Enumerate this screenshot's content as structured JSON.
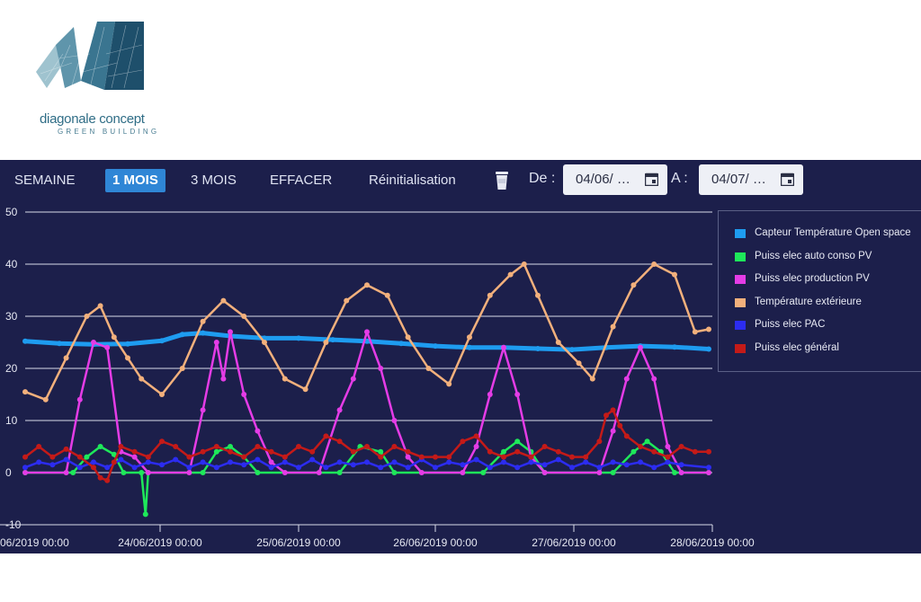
{
  "logo": {
    "name": "diagonale concept",
    "tagline": "GREEN BUILDING"
  },
  "toolbar": {
    "buttons": [
      "SEMAINE",
      "1 MOIS",
      "3 MOIS",
      "EFFACER",
      "Réinitialisation"
    ],
    "active_button": "1 MOIS",
    "from_label": "De :",
    "from_value": "04/06/ …",
    "to_label": "A :",
    "to_value": "04/07/ …",
    "icons": [
      "trash-icon",
      "calendar-icon"
    ]
  },
  "colors": {
    "background": "#1c1f4b",
    "accent": "#2f86d6"
  },
  "chart_data": {
    "type": "line",
    "ylim": [
      -10,
      50
    ],
    "yticks": [
      "50",
      "40",
      "30",
      "20",
      "10",
      "0",
      "-10"
    ],
    "x_range": [
      "2019-06-23 00:00",
      "2019-06-28 00:00"
    ],
    "xticks": [
      "06/2019 00:00",
      "24/06/2019 00:00",
      "25/06/2019 00:00",
      "26/06/2019 00:00",
      "27/06/2019 00:00",
      "28/06/2019 00:00"
    ],
    "grid": true,
    "legend_position": "right",
    "series": [
      {
        "name": "Capteur Température Open space",
        "color": "#1e9cf0",
        "points": [
          [
            0,
            25.2
          ],
          [
            0.25,
            24.8
          ],
          [
            0.5,
            24.6
          ],
          [
            0.75,
            24.7
          ],
          [
            1,
            25.3
          ],
          [
            1.15,
            26.5
          ],
          [
            1.3,
            26.8
          ],
          [
            1.5,
            26.2
          ],
          [
            1.75,
            25.8
          ],
          [
            2,
            25.8
          ],
          [
            2.25,
            25.5
          ],
          [
            2.5,
            25.2
          ],
          [
            2.75,
            24.8
          ],
          [
            3,
            24.3
          ],
          [
            3.25,
            24.0
          ],
          [
            3.5,
            24.0
          ],
          [
            3.75,
            23.8
          ],
          [
            4,
            23.6
          ],
          [
            4.25,
            24.0
          ],
          [
            4.5,
            24.3
          ],
          [
            4.75,
            24.1
          ],
          [
            5,
            23.7
          ]
        ]
      },
      {
        "name": "Puiss elec auto conso PV",
        "color": "#1ee85a",
        "points": [
          [
            0,
            0
          ],
          [
            0.35,
            0
          ],
          [
            0.45,
            3
          ],
          [
            0.55,
            5
          ],
          [
            0.65,
            3.5
          ],
          [
            0.72,
            0
          ],
          [
            0.85,
            0
          ],
          [
            0.88,
            -8
          ],
          [
            0.9,
            0
          ],
          [
            1.3,
            0
          ],
          [
            1.4,
            4
          ],
          [
            1.5,
            5
          ],
          [
            1.6,
            3
          ],
          [
            1.7,
            0
          ],
          [
            2.3,
            0
          ],
          [
            2.45,
            5
          ],
          [
            2.6,
            4
          ],
          [
            2.7,
            0
          ],
          [
            3.35,
            0
          ],
          [
            3.5,
            4
          ],
          [
            3.6,
            6
          ],
          [
            3.7,
            4
          ],
          [
            3.8,
            0
          ],
          [
            4.3,
            0
          ],
          [
            4.45,
            4
          ],
          [
            4.55,
            6
          ],
          [
            4.65,
            4
          ],
          [
            4.75,
            0
          ],
          [
            5,
            0
          ]
        ]
      },
      {
        "name": "Puiss elec production PV",
        "color": "#e43ce6",
        "points": [
          [
            0,
            0
          ],
          [
            0.3,
            0
          ],
          [
            0.4,
            14
          ],
          [
            0.5,
            25
          ],
          [
            0.6,
            24
          ],
          [
            0.7,
            4
          ],
          [
            0.8,
            3
          ],
          [
            0.9,
            0
          ],
          [
            1.2,
            0
          ],
          [
            1.3,
            12
          ],
          [
            1.4,
            25
          ],
          [
            1.45,
            18
          ],
          [
            1.5,
            27
          ],
          [
            1.6,
            15
          ],
          [
            1.7,
            8
          ],
          [
            1.8,
            2
          ],
          [
            1.9,
            0
          ],
          [
            2.15,
            0
          ],
          [
            2.3,
            12
          ],
          [
            2.4,
            18
          ],
          [
            2.5,
            27
          ],
          [
            2.6,
            20
          ],
          [
            2.7,
            10
          ],
          [
            2.8,
            3
          ],
          [
            2.9,
            0
          ],
          [
            3.2,
            0
          ],
          [
            3.3,
            5
          ],
          [
            3.4,
            15
          ],
          [
            3.5,
            24
          ],
          [
            3.6,
            15
          ],
          [
            3.7,
            3
          ],
          [
            3.8,
            0
          ],
          [
            4.2,
            0
          ],
          [
            4.3,
            8
          ],
          [
            4.4,
            18
          ],
          [
            4.5,
            24
          ],
          [
            4.6,
            18
          ],
          [
            4.7,
            5
          ],
          [
            4.8,
            0
          ],
          [
            5,
            0
          ]
        ]
      },
      {
        "name": "Température extérieure",
        "color": "#f2b07c",
        "points": [
          [
            0,
            15.5
          ],
          [
            0.15,
            14
          ],
          [
            0.3,
            22
          ],
          [
            0.45,
            30
          ],
          [
            0.55,
            32
          ],
          [
            0.65,
            26
          ],
          [
            0.75,
            22
          ],
          [
            0.85,
            18
          ],
          [
            1,
            15
          ],
          [
            1.15,
            20
          ],
          [
            1.3,
            29
          ],
          [
            1.45,
            33
          ],
          [
            1.6,
            30
          ],
          [
            1.75,
            25
          ],
          [
            1.9,
            18
          ],
          [
            2.05,
            16
          ],
          [
            2.2,
            25
          ],
          [
            2.35,
            33
          ],
          [
            2.5,
            36
          ],
          [
            2.65,
            34
          ],
          [
            2.8,
            26
          ],
          [
            2.95,
            20
          ],
          [
            3.1,
            17
          ],
          [
            3.25,
            26
          ],
          [
            3.4,
            34
          ],
          [
            3.55,
            38
          ],
          [
            3.65,
            40
          ],
          [
            3.75,
            34
          ],
          [
            3.9,
            25
          ],
          [
            4.05,
            21
          ],
          [
            4.15,
            18
          ],
          [
            4.3,
            28
          ],
          [
            4.45,
            36
          ],
          [
            4.6,
            40
          ],
          [
            4.75,
            38
          ],
          [
            4.9,
            27
          ],
          [
            5,
            27.5
          ]
        ]
      },
      {
        "name": "Puiss elec PAC",
        "color": "#2c2cf0",
        "points": [
          [
            0,
            1
          ],
          [
            0.1,
            2
          ],
          [
            0.2,
            1.5
          ],
          [
            0.3,
            2.5
          ],
          [
            0.4,
            1
          ],
          [
            0.5,
            2
          ],
          [
            0.6,
            1
          ],
          [
            0.7,
            2.5
          ],
          [
            0.8,
            1
          ],
          [
            0.9,
            2
          ],
          [
            1,
            1.5
          ],
          [
            1.1,
            2.5
          ],
          [
            1.2,
            1
          ],
          [
            1.3,
            2
          ],
          [
            1.4,
            1
          ],
          [
            1.5,
            2
          ],
          [
            1.6,
            1.5
          ],
          [
            1.7,
            2.5
          ],
          [
            1.8,
            1
          ],
          [
            1.9,
            2
          ],
          [
            2,
            1
          ],
          [
            2.1,
            2.5
          ],
          [
            2.2,
            1
          ],
          [
            2.3,
            2
          ],
          [
            2.4,
            1.5
          ],
          [
            2.5,
            2
          ],
          [
            2.6,
            1
          ],
          [
            2.7,
            2
          ],
          [
            2.8,
            1
          ],
          [
            2.9,
            2.5
          ],
          [
            3,
            1
          ],
          [
            3.1,
            2
          ],
          [
            3.2,
            1.5
          ],
          [
            3.3,
            2.5
          ],
          [
            3.4,
            1
          ],
          [
            3.5,
            2
          ],
          [
            3.6,
            1
          ],
          [
            3.7,
            2
          ],
          [
            3.8,
            1.5
          ],
          [
            3.9,
            2.5
          ],
          [
            4,
            1
          ],
          [
            4.1,
            2
          ],
          [
            4.2,
            1
          ],
          [
            4.3,
            2
          ],
          [
            4.4,
            1.5
          ],
          [
            4.5,
            2
          ],
          [
            4.6,
            1
          ],
          [
            4.7,
            2
          ],
          [
            4.8,
            1.5
          ],
          [
            5,
            1
          ]
        ]
      },
      {
        "name": "Puiss elec général",
        "color": "#c41a18",
        "points": [
          [
            0,
            3
          ],
          [
            0.1,
            5
          ],
          [
            0.2,
            3
          ],
          [
            0.3,
            4.5
          ],
          [
            0.4,
            3
          ],
          [
            0.5,
            1
          ],
          [
            0.55,
            -1
          ],
          [
            0.6,
            -1.5
          ],
          [
            0.65,
            2
          ],
          [
            0.7,
            5
          ],
          [
            0.8,
            4
          ],
          [
            0.9,
            3
          ],
          [
            1,
            6
          ],
          [
            1.1,
            5
          ],
          [
            1.2,
            3
          ],
          [
            1.3,
            4
          ],
          [
            1.4,
            5
          ],
          [
            1.5,
            4
          ],
          [
            1.6,
            3
          ],
          [
            1.7,
            5
          ],
          [
            1.8,
            4
          ],
          [
            1.9,
            3
          ],
          [
            2,
            5
          ],
          [
            2.1,
            4
          ],
          [
            2.2,
            7
          ],
          [
            2.3,
            6
          ],
          [
            2.4,
            4
          ],
          [
            2.5,
            5
          ],
          [
            2.6,
            3
          ],
          [
            2.7,
            5
          ],
          [
            2.8,
            4
          ],
          [
            2.9,
            3
          ],
          [
            3,
            3
          ],
          [
            3.1,
            3
          ],
          [
            3.2,
            6
          ],
          [
            3.3,
            7
          ],
          [
            3.4,
            4
          ],
          [
            3.5,
            3
          ],
          [
            3.6,
            4
          ],
          [
            3.7,
            3
          ],
          [
            3.8,
            5
          ],
          [
            3.9,
            4
          ],
          [
            4,
            3
          ],
          [
            4.1,
            3
          ],
          [
            4.2,
            6
          ],
          [
            4.25,
            11
          ],
          [
            4.3,
            12
          ],
          [
            4.35,
            9
          ],
          [
            4.4,
            7
          ],
          [
            4.5,
            5
          ],
          [
            4.6,
            4
          ],
          [
            4.7,
            3
          ],
          [
            4.8,
            5
          ],
          [
            4.9,
            4
          ],
          [
            5,
            4
          ]
        ]
      }
    ]
  }
}
